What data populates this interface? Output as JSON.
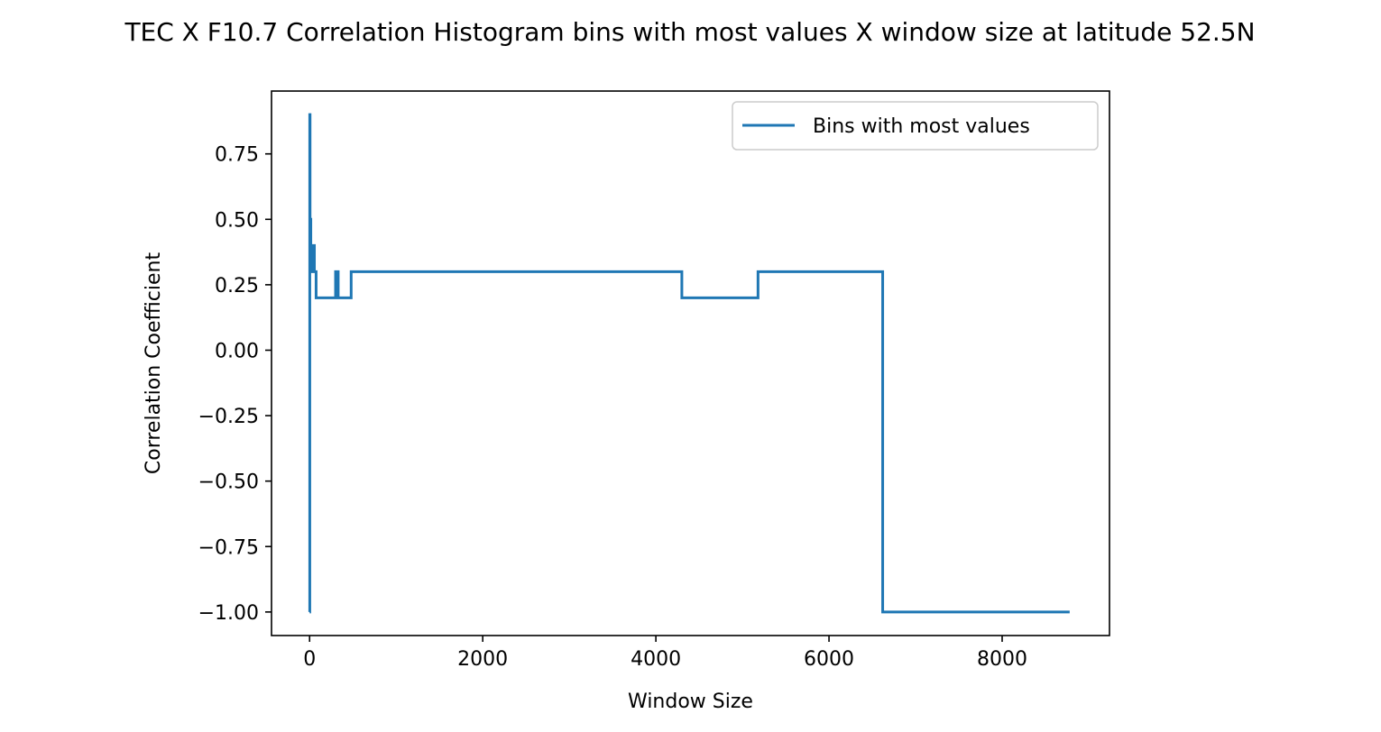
{
  "chart_data": {
    "type": "line",
    "title": "TEC X F10.7 Correlation Histogram bins with most values X window size at latitude 52.5N",
    "xlabel": "Window Size",
    "ylabel": "Correlation Coefficient",
    "xlim": [
      -440,
      9240
    ],
    "ylim": [
      -1.09,
      0.99
    ],
    "xticks": [
      0,
      2000,
      4000,
      6000,
      8000
    ],
    "xtick_labels": [
      "0",
      "2000",
      "4000",
      "6000",
      "8000"
    ],
    "yticks": [
      0.75,
      0.5,
      0.25,
      0.0,
      -0.25,
      -0.5,
      -0.75,
      -1.0
    ],
    "ytick_labels": [
      "0.75",
      "0.50",
      "0.25",
      "0.00",
      "−0.25",
      "−0.50",
      "−0.75",
      "−1.00"
    ],
    "grid": false,
    "legend_position": "upper-right",
    "line_color": "#1f77b4",
    "series": [
      {
        "name": "Bins with most values",
        "x": [
          0,
          2,
          2,
          5,
          5,
          9,
          9,
          14,
          14,
          20,
          20,
          26,
          26,
          32,
          32,
          45,
          45,
          55,
          55,
          75,
          75,
          300,
          300,
          330,
          330,
          480,
          480,
          4300,
          4300,
          5180,
          5180,
          6620,
          6620,
          8780
        ],
        "y": [
          -1.0,
          -1.0,
          0.9,
          0.9,
          0.3,
          0.3,
          0.5,
          0.5,
          0.35,
          0.35,
          0.3,
          0.3,
          0.4,
          0.4,
          0.3,
          0.3,
          0.4,
          0.4,
          0.3,
          0.3,
          0.2,
          0.2,
          0.3,
          0.3,
          0.2,
          0.2,
          0.3,
          0.3,
          0.2,
          0.2,
          0.3,
          0.3,
          -1.0,
          -1.0
        ]
      }
    ]
  }
}
